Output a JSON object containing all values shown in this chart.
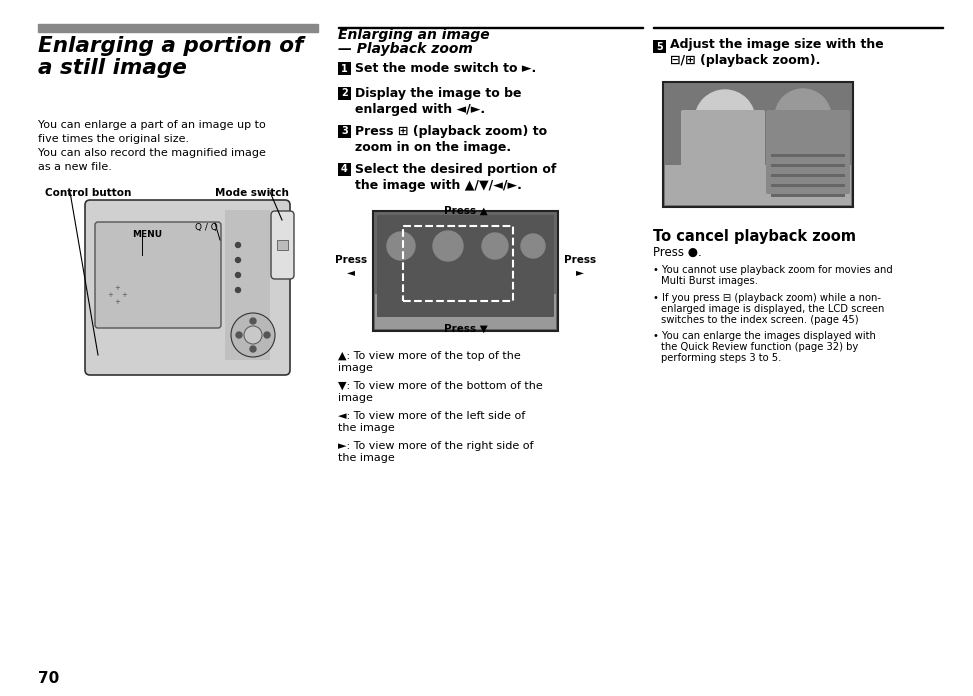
{
  "bg_color": "#ffffff",
  "page_num": "70",
  "bar_color": "#888888",
  "left_title": "Enlarging a portion of\na still image",
  "left_body1": "You can enlarge a part of an image up to",
  "left_body2": "five times the original size.",
  "left_body3": "You can also record the magnified image",
  "left_body4": "as a new file.",
  "label_ctrl": "Control button",
  "label_mode": "Mode switch",
  "label_menu": "MENU",
  "label_zoom": "⊟ / ⊞",
  "mid_title1": "Enlarging an image",
  "mid_title2": "— Playback zoom",
  "step1": "Set the mode switch to ►.",
  "step2": "Display the image to be\nenlarged with ◄/►.",
  "step3": "Press ⊞ (playback zoom) to\nzoom in on the image.",
  "step4": "Select the desired portion of\nthe image with ▲/▼/◄/►.",
  "press_up": "Press ▲",
  "press_down": "Press ▼",
  "press_left": "Press\n◄",
  "press_right": "Press\n►",
  "desc1": "▲: To view more of the top of the\nimage",
  "desc2": "▼: To view more of the bottom of the\nimage",
  "desc3": "◄: To view more of the left side of\nthe image",
  "desc4": "►: To view more of the right side of\nthe image",
  "step5_num": "5",
  "step5_text": "Adjust the image size with the\n⊟/⊞ (playback zoom).",
  "cancel_title": "To cancel playback zoom",
  "cancel_body": "Press ●.",
  "bullet1a": "You cannot use playback zoom for movies and",
  "bullet1b": "Multi Burst images.",
  "bullet2a": "If you press ⊟ (playback zoom) while a non-",
  "bullet2b": "enlarged image is displayed, the LCD screen",
  "bullet2c": "switches to the index screen. (page 45)",
  "bullet3a": "You can enlarge the images displayed with",
  "bullet3b": "the Quick Review function (page 32) by",
  "bullet3c": "performing steps 3 to 5."
}
